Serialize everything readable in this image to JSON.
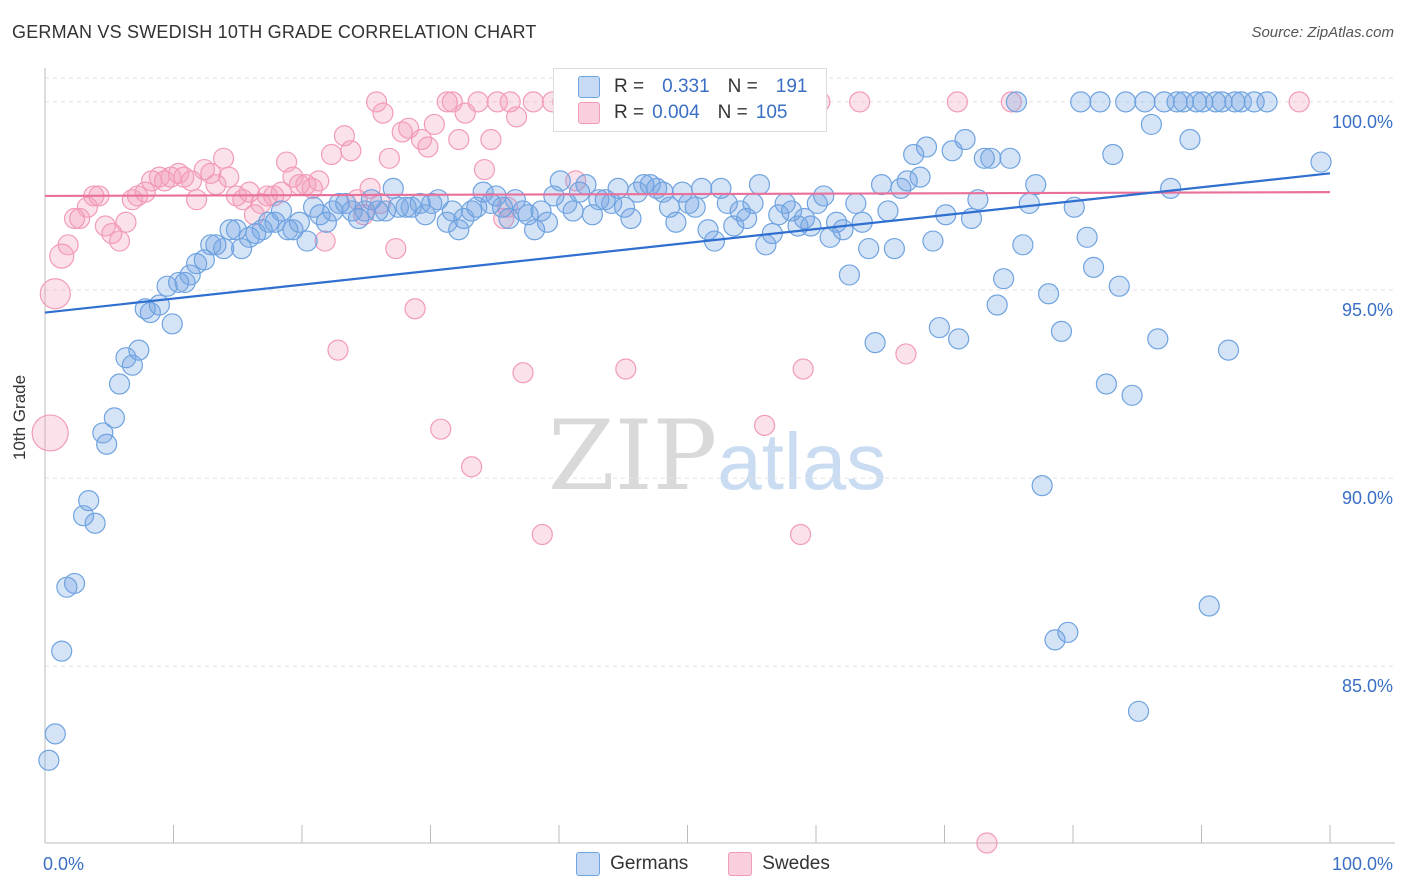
{
  "title": "GERMAN VS SWEDISH 10TH GRADE CORRELATION CHART",
  "source": "Source: ZipAtlas.com",
  "watermark": {
    "zip": "ZIP",
    "atlas": "atlas"
  },
  "colors": {
    "german": "#6fa3e0",
    "german_line": "#2f6fcf",
    "swede": "#f29bb8",
    "swede_line": "#e8709a",
    "tick": "#3a6fc4"
  },
  "legend": {
    "rows": [
      {
        "r_label": "R =",
        "r_value": "0.331",
        "n_label": "N =",
        "n_value": "191"
      },
      {
        "r_label": "R =",
        "r_value": "0.004",
        "n_label": "N =",
        "n_value": "105"
      }
    ]
  },
  "bottom_legend": {
    "german": "Germans",
    "swede": "Swedes"
  },
  "chart_data": {
    "type": "scatter",
    "ylabel": "10th Grade",
    "xlabel": "",
    "xlim": [
      0,
      100
    ],
    "ylim": [
      80.3,
      100.9
    ],
    "x_tick_labels": [
      "0.0%",
      "100.0%"
    ],
    "y_ticks": [
      85,
      90,
      95,
      100
    ],
    "y_tick_labels": [
      "85.0%",
      "90.0%",
      "95.0%",
      "100.0%"
    ],
    "grid": true,
    "legend_position": "top-center",
    "series": [
      {
        "name": "Germans",
        "trend": [
          [
            0,
            94.4
          ],
          [
            100,
            98.1
          ]
        ],
        "points": [
          [
            0.3,
            82.5
          ],
          [
            0.8,
            83.2
          ],
          [
            1.3,
            85.4
          ],
          [
            1.7,
            87.1
          ],
          [
            2.3,
            87.2
          ],
          [
            3,
            89
          ],
          [
            3.4,
            89.4
          ],
          [
            3.9,
            88.8
          ],
          [
            4.5,
            91.2
          ],
          [
            4.8,
            90.9
          ],
          [
            5.4,
            91.6
          ],
          [
            5.8,
            92.5
          ],
          [
            6.3,
            93.2
          ],
          [
            6.8,
            93
          ],
          [
            7.3,
            93.4
          ],
          [
            7.8,
            94.5
          ],
          [
            8.2,
            94.4
          ],
          [
            8.9,
            94.6
          ],
          [
            9.5,
            95.1
          ],
          [
            9.9,
            94.1
          ],
          [
            10.4,
            95.2
          ],
          [
            10.9,
            95.2
          ],
          [
            11.3,
            95.4
          ],
          [
            11.8,
            95.7
          ],
          [
            12.4,
            95.8
          ],
          [
            12.9,
            96.2
          ],
          [
            13.3,
            96.2
          ],
          [
            13.9,
            96.1
          ],
          [
            14.4,
            96.6
          ],
          [
            14.9,
            96.6
          ],
          [
            15.3,
            96.1
          ],
          [
            15.9,
            96.4
          ],
          [
            16.4,
            96.5
          ],
          [
            16.9,
            96.6
          ],
          [
            17.4,
            96.8
          ],
          [
            17.9,
            96.8
          ],
          [
            18.4,
            97.1
          ],
          [
            18.9,
            96.6
          ],
          [
            19.3,
            96.6
          ],
          [
            19.8,
            96.8
          ],
          [
            20.4,
            96.3
          ],
          [
            20.9,
            97.2
          ],
          [
            21.4,
            97
          ],
          [
            21.9,
            96.8
          ],
          [
            22.4,
            97.1
          ],
          [
            22.9,
            97.3
          ],
          [
            23.4,
            97.3
          ],
          [
            23.9,
            97.1
          ],
          [
            24.4,
            96.9
          ],
          [
            24.9,
            97.1
          ],
          [
            25.4,
            97.4
          ],
          [
            25.9,
            97.1
          ],
          [
            26.5,
            97.1
          ],
          [
            27.1,
            97.7
          ],
          [
            27.5,
            97.2
          ],
          [
            28.1,
            97.2
          ],
          [
            28.5,
            97.2
          ],
          [
            29.2,
            97.3
          ],
          [
            29.6,
            97
          ],
          [
            30.1,
            97.3
          ],
          [
            30.6,
            97.4
          ],
          [
            31.3,
            96.8
          ],
          [
            31.7,
            97.1
          ],
          [
            32.2,
            96.6
          ],
          [
            32.6,
            96.9
          ],
          [
            33.2,
            97.1
          ],
          [
            33.6,
            97.2
          ],
          [
            34.1,
            97.6
          ],
          [
            34.7,
            97.3
          ],
          [
            35.1,
            97.5
          ],
          [
            35.6,
            97.2
          ],
          [
            36.1,
            96.9
          ],
          [
            36.6,
            97.4
          ],
          [
            37.2,
            97.1
          ],
          [
            37.6,
            97
          ],
          [
            38.1,
            96.6
          ],
          [
            38.6,
            97.1
          ],
          [
            39.1,
            96.8
          ],
          [
            39.6,
            97.5
          ],
          [
            40.1,
            97.9
          ],
          [
            40.6,
            97.3
          ],
          [
            41.1,
            97.1
          ],
          [
            41.6,
            97.6
          ],
          [
            42.1,
            97.8
          ],
          [
            42.6,
            97
          ],
          [
            43.1,
            97.4
          ],
          [
            43.6,
            97.4
          ],
          [
            44.1,
            97.3
          ],
          [
            44.6,
            97.7
          ],
          [
            45.1,
            97.2
          ],
          [
            45.6,
            96.9
          ],
          [
            46.1,
            97.6
          ],
          [
            46.6,
            97.8
          ],
          [
            47.1,
            97.8
          ],
          [
            47.6,
            97.7
          ],
          [
            48.1,
            97.6
          ],
          [
            48.6,
            97.2
          ],
          [
            49.1,
            96.8
          ],
          [
            49.6,
            97.6
          ],
          [
            50.1,
            97.3
          ],
          [
            50.6,
            97.2
          ],
          [
            51.1,
            97.7
          ],
          [
            51.6,
            96.6
          ],
          [
            52.1,
            96.3
          ],
          [
            52.6,
            97.7
          ],
          [
            53.1,
            97.3
          ],
          [
            53.6,
            96.7
          ],
          [
            54.1,
            97.1
          ],
          [
            54.6,
            96.9
          ],
          [
            55.1,
            97.3
          ],
          [
            55.6,
            97.8
          ],
          [
            56.1,
            96.2
          ],
          [
            56.6,
            96.5
          ],
          [
            57.1,
            97
          ],
          [
            57.6,
            97.3
          ],
          [
            58.1,
            97.1
          ],
          [
            58.6,
            96.7
          ],
          [
            59.1,
            96.9
          ],
          [
            59.6,
            96.7
          ],
          [
            60.1,
            97.3
          ],
          [
            60.6,
            97.5
          ],
          [
            61.1,
            96.4
          ],
          [
            61.6,
            96.8
          ],
          [
            62.1,
            96.6
          ],
          [
            62.6,
            95.4
          ],
          [
            63.1,
            97.3
          ],
          [
            63.6,
            96.8
          ],
          [
            64.1,
            96.1
          ],
          [
            64.6,
            93.6
          ],
          [
            65.1,
            97.8
          ],
          [
            65.6,
            97.1
          ],
          [
            66.1,
            96.1
          ],
          [
            66.6,
            97.7
          ],
          [
            67.1,
            97.9
          ],
          [
            67.6,
            98.6
          ],
          [
            68.1,
            98
          ],
          [
            68.6,
            98.8
          ],
          [
            69.1,
            96.3
          ],
          [
            69.6,
            94
          ],
          [
            70.1,
            97
          ],
          [
            70.6,
            98.7
          ],
          [
            71.1,
            93.7
          ],
          [
            71.6,
            99
          ],
          [
            72.1,
            96.9
          ],
          [
            72.6,
            97.4
          ],
          [
            73.1,
            98.5
          ],
          [
            73.6,
            98.5
          ],
          [
            74.1,
            94.6
          ],
          [
            74.6,
            95.3
          ],
          [
            75.1,
            98.5
          ],
          [
            75.6,
            100
          ],
          [
            76.1,
            96.2
          ],
          [
            76.6,
            97.3
          ],
          [
            77.1,
            97.8
          ],
          [
            77.6,
            89.8
          ],
          [
            78.1,
            94.9
          ],
          [
            78.6,
            85.7
          ],
          [
            79.1,
            93.9
          ],
          [
            79.6,
            85.9
          ],
          [
            80.1,
            97.2
          ],
          [
            80.6,
            100
          ],
          [
            81.1,
            96.4
          ],
          [
            81.6,
            95.6
          ],
          [
            82.1,
            100
          ],
          [
            82.6,
            92.5
          ],
          [
            83.1,
            98.6
          ],
          [
            83.6,
            95.1
          ],
          [
            84.1,
            100
          ],
          [
            84.6,
            92.2
          ],
          [
            85.1,
            83.8
          ],
          [
            85.6,
            100
          ],
          [
            86.1,
            99.4
          ],
          [
            86.6,
            93.7
          ],
          [
            87.1,
            100
          ],
          [
            87.6,
            97.7
          ],
          [
            88.1,
            100
          ],
          [
            88.6,
            100
          ],
          [
            89.1,
            99
          ],
          [
            89.6,
            100
          ],
          [
            90.1,
            100
          ],
          [
            90.6,
            86.6
          ],
          [
            91.1,
            100
          ],
          [
            91.6,
            100
          ],
          [
            92.1,
            93.4
          ],
          [
            92.6,
            100
          ],
          [
            93.1,
            100
          ],
          [
            94.1,
            100
          ],
          [
            95.1,
            100
          ],
          [
            99.3,
            98.4
          ]
        ]
      },
      {
        "name": "Swedes",
        "trend": [
          [
            0,
            97.5
          ],
          [
            100,
            97.6
          ]
        ],
        "points": [
          [
            0.4,
            91.2
          ],
          [
            0.8,
            94.9
          ],
          [
            1.3,
            95.9
          ],
          [
            1.8,
            96.2
          ],
          [
            2.3,
            96.9
          ],
          [
            2.7,
            96.9
          ],
          [
            3.3,
            97.2
          ],
          [
            3.8,
            97.5
          ],
          [
            4.2,
            97.5
          ],
          [
            4.7,
            96.7
          ],
          [
            5.2,
            96.5
          ],
          [
            5.8,
            96.3
          ],
          [
            6.3,
            96.8
          ],
          [
            6.8,
            97.4
          ],
          [
            7.2,
            97.5
          ],
          [
            7.8,
            97.6
          ],
          [
            8.3,
            97.9
          ],
          [
            8.9,
            98
          ],
          [
            9.3,
            97.9
          ],
          [
            9.8,
            98
          ],
          [
            10.4,
            98.1
          ],
          [
            10.8,
            98
          ],
          [
            11.4,
            97.9
          ],
          [
            11.8,
            97.4
          ],
          [
            12.4,
            98.2
          ],
          [
            12.9,
            98.1
          ],
          [
            13.3,
            97.8
          ],
          [
            13.9,
            98.5
          ],
          [
            14.3,
            98
          ],
          [
            14.9,
            97.5
          ],
          [
            15.4,
            97.4
          ],
          [
            15.9,
            97.6
          ],
          [
            16.3,
            97
          ],
          [
            16.8,
            97.3
          ],
          [
            17.3,
            97.5
          ],
          [
            17.8,
            97.5
          ],
          [
            18.4,
            97.6
          ],
          [
            18.8,
            98.4
          ],
          [
            19.3,
            98
          ],
          [
            19.8,
            97.8
          ],
          [
            20.3,
            97.8
          ],
          [
            20.8,
            97.7
          ],
          [
            21.3,
            97.9
          ],
          [
            21.8,
            96.3
          ],
          [
            22.3,
            98.6
          ],
          [
            22.8,
            93.4
          ],
          [
            23.3,
            99.1
          ],
          [
            23.8,
            98.7
          ],
          [
            24.3,
            97.4
          ],
          [
            24.8,
            97
          ],
          [
            25.3,
            97.7
          ],
          [
            25.8,
            100
          ],
          [
            26.3,
            99.7
          ],
          [
            26.8,
            98.5
          ],
          [
            27.3,
            96.1
          ],
          [
            27.8,
            99.2
          ],
          [
            28.3,
            99.3
          ],
          [
            28.8,
            94.5
          ],
          [
            29.3,
            99
          ],
          [
            29.8,
            98.8
          ],
          [
            30.3,
            99.4
          ],
          [
            30.8,
            91.3
          ],
          [
            31.3,
            100
          ],
          [
            31.7,
            100
          ],
          [
            32.2,
            99
          ],
          [
            32.7,
            99.7
          ],
          [
            33.2,
            90.3
          ],
          [
            33.7,
            100
          ],
          [
            34.2,
            98.2
          ],
          [
            34.7,
            99
          ],
          [
            35.2,
            100
          ],
          [
            35.7,
            96.9
          ],
          [
            36.2,
            100
          ],
          [
            36.7,
            99.6
          ],
          [
            37.2,
            92.8
          ],
          [
            38,
            100
          ],
          [
            38.7,
            88.5
          ],
          [
            39.5,
            100
          ],
          [
            40.3,
            100
          ],
          [
            41.3,
            97.9
          ],
          [
            42.5,
            100
          ],
          [
            43.3,
            100
          ],
          [
            44.3,
            100
          ],
          [
            45.2,
            92.9
          ],
          [
            46,
            100
          ],
          [
            47.1,
            100
          ],
          [
            49,
            100
          ],
          [
            50,
            100
          ],
          [
            51.2,
            100
          ],
          [
            53,
            100
          ],
          [
            55,
            100
          ],
          [
            56,
            91.4
          ],
          [
            58,
            100
          ],
          [
            58.8,
            88.5
          ],
          [
            59,
            92.9
          ],
          [
            60.3,
            100
          ],
          [
            63.4,
            100
          ],
          [
            67,
            93.3
          ],
          [
            71,
            100
          ],
          [
            75.2,
            100
          ],
          [
            97.6,
            100
          ],
          [
            73.3,
            80.3
          ],
          [
            36,
            97.2
          ],
          [
            26.1,
            97.3
          ]
        ]
      }
    ]
  }
}
